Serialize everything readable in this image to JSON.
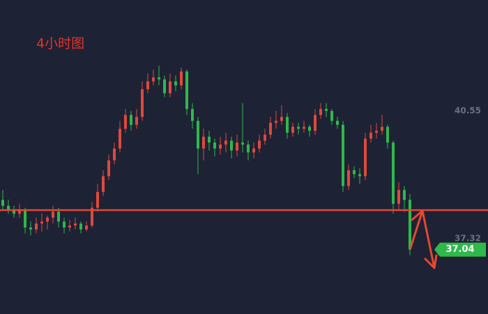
{
  "chart_data": {
    "type": "candlestick",
    "title": "4小时图",
    "up_color": "#e0493b",
    "down_color": "#2eb94a",
    "ylim": [
      35.41,
      43.36
    ],
    "yticks": [
      40.55,
      37.32
    ],
    "hline": 38.04,
    "hline_color": "#e8472f",
    "candles": [
      [
        38.3,
        38.55,
        38.05,
        38.15
      ],
      [
        38.15,
        38.3,
        37.95,
        38.05
      ],
      [
        38.05,
        38.15,
        37.85,
        37.95
      ],
      [
        37.95,
        38.2,
        37.85,
        38.05
      ],
      [
        38.05,
        38.1,
        37.45,
        37.6
      ],
      [
        37.6,
        37.75,
        37.4,
        37.55
      ],
      [
        37.55,
        37.85,
        37.45,
        37.7
      ],
      [
        37.7,
        37.95,
        37.5,
        37.75
      ],
      [
        37.75,
        37.9,
        37.55,
        37.85
      ],
      [
        37.85,
        38.15,
        37.7,
        38.0
      ],
      [
        38.0,
        38.1,
        37.6,
        37.75
      ],
      [
        37.75,
        37.85,
        37.45,
        37.6
      ],
      [
        37.6,
        37.8,
        37.5,
        37.65
      ],
      [
        37.65,
        37.85,
        37.55,
        37.7
      ],
      [
        37.7,
        37.75,
        37.45,
        37.55
      ],
      [
        37.55,
        37.75,
        37.5,
        37.65
      ],
      [
        37.65,
        38.25,
        37.6,
        38.1
      ],
      [
        38.1,
        38.7,
        38.0,
        38.5
      ],
      [
        38.5,
        39.05,
        38.4,
        38.9
      ],
      [
        38.9,
        39.45,
        38.8,
        39.3
      ],
      [
        39.3,
        39.75,
        39.2,
        39.6
      ],
      [
        39.6,
        40.3,
        39.5,
        40.1
      ],
      [
        40.1,
        40.6,
        40.0,
        40.45
      ],
      [
        40.45,
        40.55,
        40.05,
        40.2
      ],
      [
        40.2,
        40.6,
        40.1,
        40.4
      ],
      [
        40.4,
        41.3,
        40.3,
        41.1
      ],
      [
        41.1,
        41.5,
        41.0,
        41.3
      ],
      [
        41.3,
        41.6,
        41.2,
        41.4
      ],
      [
        41.4,
        41.7,
        41.2,
        41.35
      ],
      [
        41.35,
        41.45,
        40.9,
        41.0
      ],
      [
        41.0,
        41.5,
        40.9,
        41.3
      ],
      [
        41.3,
        41.45,
        41.05,
        41.2
      ],
      [
        41.2,
        41.65,
        41.1,
        41.55
      ],
      [
        41.55,
        41.6,
        40.45,
        40.6
      ],
      [
        40.6,
        40.75,
        40.1,
        40.3
      ],
      [
        40.3,
        40.4,
        38.95,
        39.6
      ],
      [
        39.6,
        40.1,
        39.3,
        39.9
      ],
      [
        39.9,
        40.05,
        39.55,
        39.75
      ],
      [
        39.75,
        39.85,
        39.4,
        39.6
      ],
      [
        39.6,
        39.9,
        39.45,
        39.7
      ],
      [
        39.7,
        40.0,
        39.5,
        39.8
      ],
      [
        39.8,
        39.9,
        39.35,
        39.55
      ],
      [
        39.55,
        39.95,
        39.4,
        39.75
      ],
      [
        39.75,
        40.75,
        39.5,
        39.7
      ],
      [
        39.7,
        39.8,
        39.3,
        39.5
      ],
      [
        39.5,
        39.75,
        39.35,
        39.6
      ],
      [
        39.6,
        39.95,
        39.5,
        39.8
      ],
      [
        39.8,
        40.1,
        39.7,
        39.95
      ],
      [
        39.95,
        40.4,
        39.85,
        40.25
      ],
      [
        40.25,
        40.55,
        40.1,
        40.3
      ],
      [
        40.3,
        40.7,
        40.2,
        40.4
      ],
      [
        40.4,
        40.5,
        39.85,
        40.0
      ],
      [
        40.0,
        40.25,
        39.9,
        40.15
      ],
      [
        40.15,
        40.25,
        39.95,
        40.1
      ],
      [
        40.1,
        40.3,
        40.0,
        40.15
      ],
      [
        40.15,
        40.2,
        39.9,
        40.05
      ],
      [
        40.05,
        40.6,
        39.95,
        40.45
      ],
      [
        40.45,
        40.75,
        40.35,
        40.6
      ],
      [
        40.6,
        40.75,
        40.4,
        40.55
      ],
      [
        40.55,
        40.6,
        40.2,
        40.3
      ],
      [
        40.3,
        40.4,
        40.1,
        40.2
      ],
      [
        40.2,
        40.3,
        38.5,
        38.65
      ],
      [
        38.65,
        39.2,
        38.55,
        39.05
      ],
      [
        39.05,
        39.15,
        38.85,
        38.95
      ],
      [
        38.95,
        39.1,
        38.7,
        38.9
      ],
      [
        38.9,
        40.0,
        38.8,
        39.85
      ],
      [
        39.85,
        40.2,
        39.75,
        40.0
      ],
      [
        40.0,
        40.25,
        39.85,
        40.05
      ],
      [
        40.05,
        40.45,
        39.95,
        40.15
      ],
      [
        40.15,
        40.2,
        39.6,
        39.75
      ],
      [
        39.75,
        39.8,
        37.95,
        38.2
      ],
      [
        38.2,
        38.75,
        38.05,
        38.55
      ],
      [
        38.55,
        38.65,
        38.0,
        38.3
      ],
      [
        38.3,
        38.45,
        36.9,
        37.04
      ]
    ]
  }
}
